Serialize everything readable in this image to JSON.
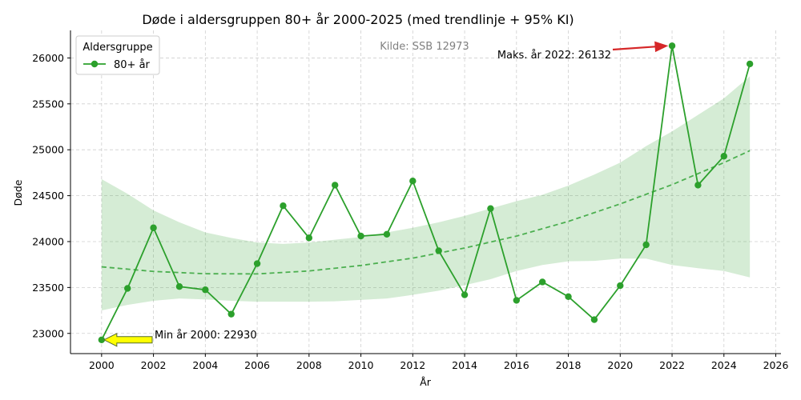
{
  "chart_data": {
    "type": "line",
    "title": "Døde i aldersgruppen 80+ år 2000-2025 (med trendlinje + 95% KI)",
    "xlabel": "År",
    "ylabel": "Døde",
    "xlim": [
      1998.8,
      2026.2
    ],
    "ylim": [
      22780,
      26300
    ],
    "xticks": [
      2000,
      2002,
      2004,
      2006,
      2008,
      2010,
      2012,
      2014,
      2016,
      2018,
      2020,
      2022,
      2024,
      2026
    ],
    "yticks": [
      23000,
      23500,
      24000,
      24500,
      25000,
      25500,
      26000
    ],
    "grid": true,
    "legend": {
      "title": "Aldersgruppe",
      "position": "top-left"
    },
    "series": [
      {
        "name": "80+ år",
        "color": "#2ca02c",
        "x": [
          2000,
          2001,
          2002,
          2003,
          2004,
          2005,
          2006,
          2007,
          2008,
          2009,
          2010,
          2011,
          2012,
          2013,
          2014,
          2015,
          2016,
          2017,
          2018,
          2019,
          2020,
          2021,
          2022,
          2023,
          2024,
          2025
        ],
        "y": [
          22930,
          23490,
          24150,
          23510,
          23475,
          23210,
          23760,
          24390,
          24040,
          24615,
          24060,
          24080,
          24660,
          23900,
          23420,
          24360,
          23360,
          23560,
          23400,
          23150,
          23520,
          23965,
          26132,
          24615,
          24930,
          25935
        ]
      }
    ],
    "trend": {
      "color": "#4caf50",
      "x": [
        2000,
        2002,
        2004,
        2006,
        2008,
        2010,
        2012,
        2014,
        2016,
        2018,
        2020,
        2022,
        2024,
        2025
      ],
      "y": [
        23725,
        23675,
        23650,
        23648,
        23680,
        23740,
        23820,
        23930,
        24060,
        24220,
        24410,
        24620,
        24860,
        24990
      ]
    },
    "ci": {
      "color": "#2ca02c",
      "x": [
        2000,
        2001,
        2002,
        2003,
        2004,
        2005,
        2006,
        2007,
        2008,
        2009,
        2010,
        2011,
        2012,
        2013,
        2014,
        2015,
        2016,
        2017,
        2018,
        2019,
        2020,
        2021,
        2022,
        2023,
        2024,
        2025
      ],
      "upper": [
        24680,
        24520,
        24340,
        24210,
        24100,
        24040,
        23990,
        23975,
        23990,
        24020,
        24050,
        24100,
        24150,
        24210,
        24280,
        24360,
        24440,
        24510,
        24610,
        24730,
        24860,
        25040,
        25200,
        25380,
        25560,
        25800
      ],
      "lower": [
        23250,
        23310,
        23355,
        23380,
        23370,
        23355,
        23345,
        23345,
        23345,
        23350,
        23365,
        23380,
        23420,
        23465,
        23525,
        23590,
        23680,
        23745,
        23785,
        23790,
        23815,
        23815,
        23745,
        23710,
        23680,
        23610
      ]
    },
    "annotations": {
      "max": {
        "text": "Maks. år 2022: 26132",
        "x": 2022,
        "y": 26132,
        "color": "#d62728"
      },
      "min": {
        "text": "Min år 2000: 22930",
        "x": 2000,
        "y": 22930,
        "color": "#ffff00"
      }
    },
    "source_note": "Kilde: SSB 12973"
  }
}
